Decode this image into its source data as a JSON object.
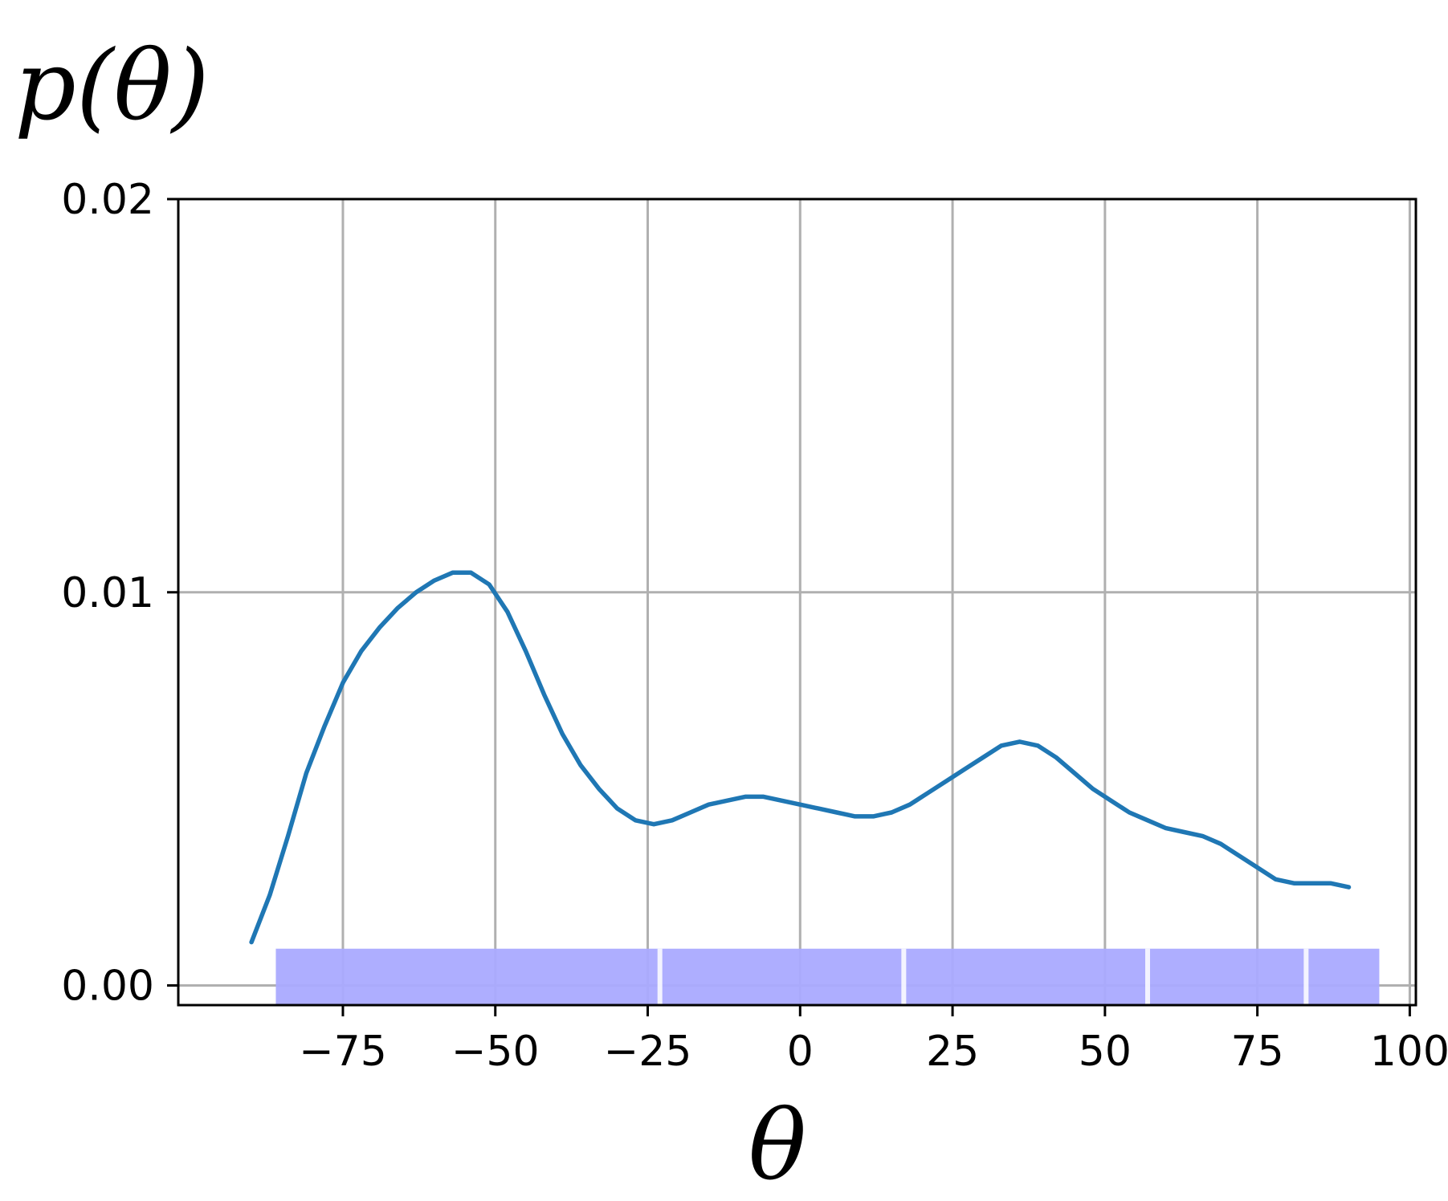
{
  "chart_data": {
    "type": "line",
    "title": "",
    "ylabel": "p(θ)",
    "xlabel": "θ",
    "xlim": [
      -102,
      101
    ],
    "ylim": [
      -0.0005,
      0.02
    ],
    "xticks": [
      -75,
      -50,
      -25,
      0,
      25,
      50,
      75,
      100
    ],
    "xtick_labels": [
      "−75",
      "−50",
      "−25",
      "0",
      "25",
      "50",
      "75",
      "100"
    ],
    "yticks": [
      0.0,
      0.01,
      0.02
    ],
    "ytick_labels": [
      "0.00",
      "0.01",
      "0.02"
    ],
    "grid": true,
    "series": [
      {
        "color": "#1f77b4",
        "x": [
          -90,
          -87,
          -84,
          -81,
          -78,
          -75,
          -72,
          -69,
          -66,
          -63,
          -60,
          -57,
          -54,
          -51,
          -48,
          -45,
          -42,
          -39,
          -36,
          -33,
          -30,
          -27,
          -24,
          -21,
          -18,
          -15,
          -12,
          -9,
          -6,
          -3,
          0,
          3,
          6,
          9,
          12,
          15,
          18,
          21,
          24,
          27,
          30,
          33,
          36,
          39,
          42,
          45,
          48,
          51,
          54,
          57,
          60,
          63,
          66,
          69,
          72,
          75,
          78,
          81,
          84,
          87,
          90
        ],
        "y": [
          0.0011,
          0.0023,
          0.0038,
          0.0054,
          0.0066,
          0.0077,
          0.0085,
          0.0091,
          0.0096,
          0.01,
          0.0103,
          0.0105,
          0.0105,
          0.0102,
          0.0095,
          0.0085,
          0.0074,
          0.0064,
          0.0056,
          0.005,
          0.0045,
          0.0042,
          0.0041,
          0.0042,
          0.0044,
          0.0046,
          0.0047,
          0.0048,
          0.0048,
          0.0047,
          0.0046,
          0.0045,
          0.0044,
          0.0043,
          0.0043,
          0.0044,
          0.0046,
          0.0049,
          0.0052,
          0.0055,
          0.0058,
          0.0061,
          0.0062,
          0.0061,
          0.0058,
          0.0054,
          0.005,
          0.0047,
          0.0044,
          0.0042,
          0.004,
          0.0039,
          0.0038,
          0.0036,
          0.0033,
          0.003,
          0.0027,
          0.0026,
          0.0026,
          0.0026,
          0.0025
        ]
      }
    ],
    "rug": {
      "color": "#aaaaff",
      "x_start": -86,
      "x_end": 95,
      "gaps": [
        -23,
        17,
        57,
        83
      ]
    }
  }
}
